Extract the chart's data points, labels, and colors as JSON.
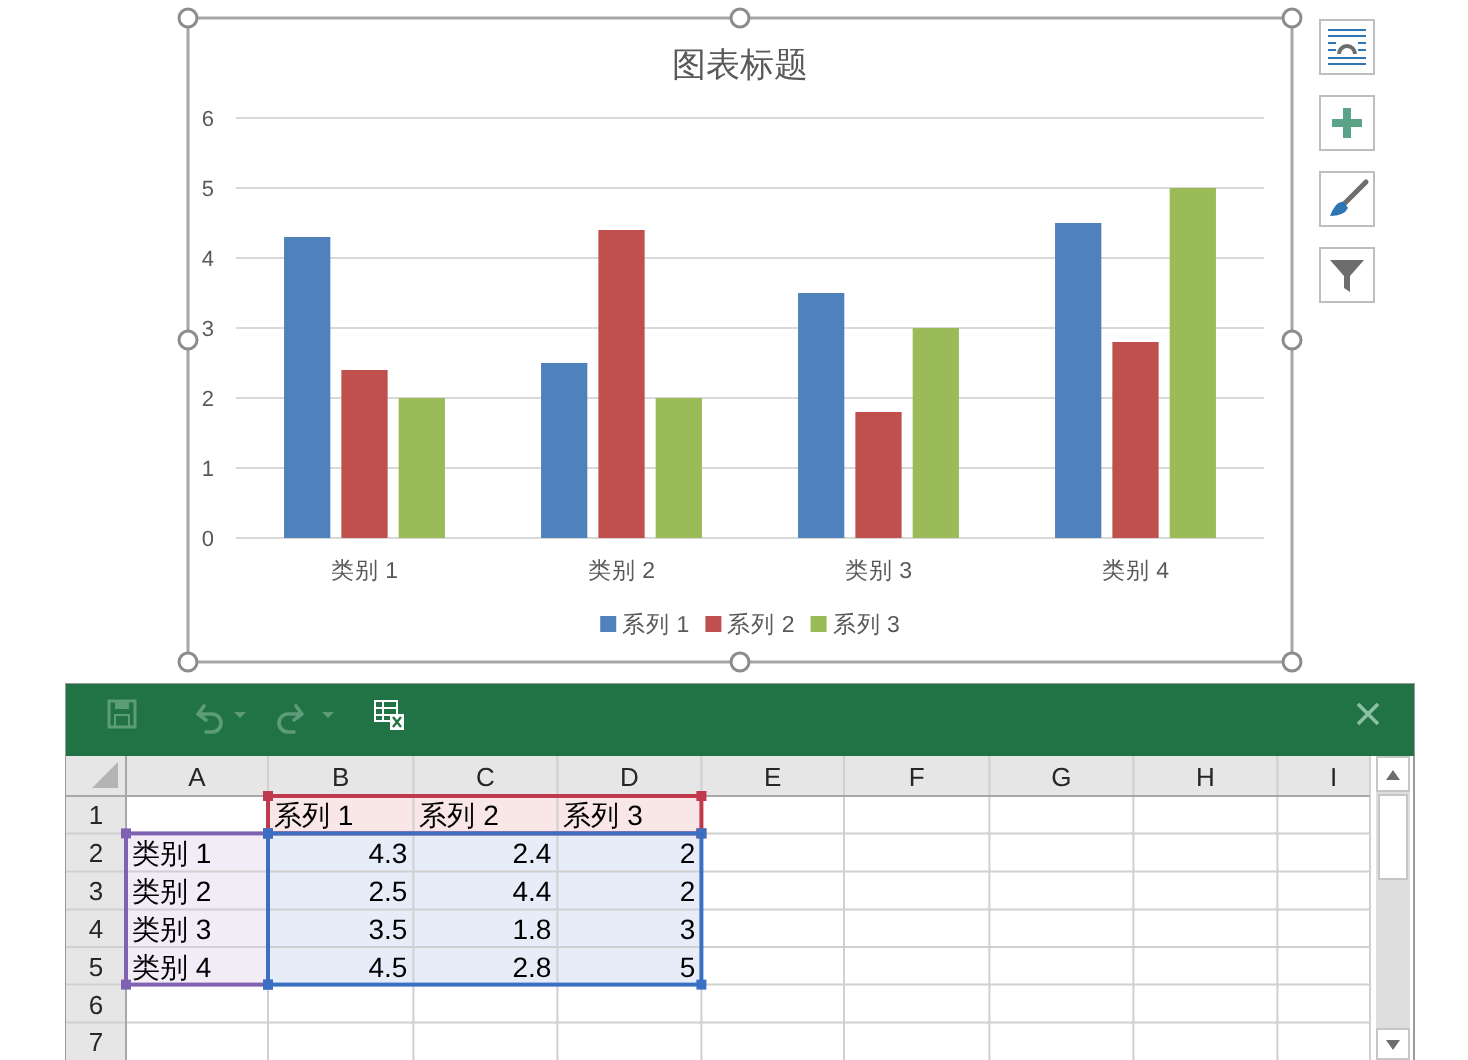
{
  "chart_data": [
    {
      "type": "bar",
      "title": "图表标题",
      "categories": [
        "类别 1",
        "类别 2",
        "类别 3",
        "类别 4"
      ],
      "series": [
        {
          "name": "系列 1",
          "color": "#4f81bd",
          "values": [
            4.3,
            2.5,
            3.5,
            4.5
          ]
        },
        {
          "name": "系列 2",
          "color": "#c0504d",
          "values": [
            2.4,
            4.4,
            1.8,
            2.8
          ]
        },
        {
          "name": "系列 3",
          "color": "#9bbb59",
          "values": [
            2,
            2,
            3,
            5
          ]
        }
      ],
      "ylim": [
        0,
        6
      ],
      "yticks": [
        0,
        1,
        2,
        3,
        4,
        5,
        6
      ],
      "grid": "y",
      "legend": "bottom"
    },
    {
      "type": "heatmap",
      "categories": [
        "A",
        "B",
        "C",
        "D",
        "E",
        "F",
        "G",
        "H",
        "I"
      ],
      "y_categories": [
        "1",
        "2",
        "3",
        "4",
        "5",
        "6",
        "7"
      ],
      "cells": [
        [
          null,
          null,
          null,
          null,
          null,
          null,
          null,
          null,
          null
        ],
        [
          null,
          null,
          null,
          null,
          null,
          null,
          null,
          null,
          null
        ],
        [
          null,
          null,
          null,
          null,
          null,
          null,
          null,
          null,
          null
        ],
        [
          null,
          null,
          null,
          null,
          null,
          null,
          null,
          null,
          null
        ],
        [
          null,
          null,
          null,
          null,
          null,
          null,
          null,
          null,
          null
        ],
        [
          null,
          null,
          null,
          null,
          null,
          null,
          null,
          null,
          null
        ],
        [
          null,
          null,
          null,
          null,
          null,
          null,
          null,
          null,
          null
        ]
      ],
      "cell_labels": [
        [
          null,
          "系列 1",
          "系列 2",
          "系列 3",
          null,
          null,
          null,
          null,
          null
        ],
        [
          "类别 1",
          "4.3",
          "2.4",
          "2",
          null,
          null,
          null,
          null,
          null
        ],
        [
          "类别 2",
          "2.5",
          "4.4",
          "2",
          null,
          null,
          null,
          null,
          null
        ],
        [
          "类别 3",
          "3.5",
          "1.8",
          "3",
          null,
          null,
          null,
          null,
          null
        ],
        [
          "类别 4",
          "4.5",
          "2.8",
          "5",
          null,
          null,
          null,
          null,
          null
        ],
        [
          null,
          null,
          null,
          null,
          null,
          null,
          null,
          null,
          null
        ],
        [
          null,
          null,
          null,
          null,
          null,
          null,
          null,
          null,
          null
        ]
      ]
    }
  ]
}
